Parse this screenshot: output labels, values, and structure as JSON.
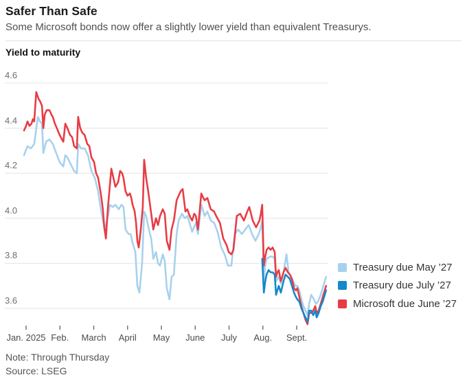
{
  "header": {
    "title": "Safer Than Safe",
    "subtitle": "Some Microsoft bonds now offer a slightly lower yield than equivalent Treasurys."
  },
  "chart_data": {
    "type": "line",
    "title": "Yield to maturity",
    "unit": "percent yield to maturity",
    "x_axis": {
      "tick_labels": [
        "Jan. 2025",
        "Feb.",
        "March",
        "April",
        "May",
        "June",
        "July",
        "Aug.",
        "Sept."
      ],
      "x_unit": "months since Jan 2025 tick (0 = Jan, 8 = Sept)"
    },
    "y_axis": {
      "ticks": [
        4.6,
        4.4,
        4.2,
        4.0,
        3.8,
        3.6
      ],
      "range": [
        3.5,
        4.65
      ]
    },
    "grid": "horizontal",
    "legend_position": "right",
    "series": [
      {
        "name": "Treasury due May ’27",
        "color": "#a7d1ee",
        "points": [
          [
            -0.06,
            4.28
          ],
          [
            0.04,
            4.32
          ],
          [
            0.14,
            4.31
          ],
          [
            0.24,
            4.33
          ],
          [
            0.35,
            4.45
          ],
          [
            0.41,
            4.43
          ],
          [
            0.47,
            4.42
          ],
          [
            0.51,
            4.29
          ],
          [
            0.59,
            4.34
          ],
          [
            0.69,
            4.35
          ],
          [
            0.79,
            4.33
          ],
          [
            0.89,
            4.29
          ],
          [
            0.99,
            4.25
          ],
          [
            1.1,
            4.23
          ],
          [
            1.16,
            4.28
          ],
          [
            1.22,
            4.27
          ],
          [
            1.32,
            4.24
          ],
          [
            1.42,
            4.21
          ],
          [
            1.5,
            4.2
          ],
          [
            1.54,
            4.33
          ],
          [
            1.62,
            4.31
          ],
          [
            1.73,
            4.31
          ],
          [
            1.83,
            4.28
          ],
          [
            1.93,
            4.21
          ],
          [
            2.03,
            4.18
          ],
          [
            2.13,
            4.12
          ],
          [
            2.21,
            4.04
          ],
          [
            2.27,
            3.99
          ],
          [
            2.33,
            3.95
          ],
          [
            2.42,
            4.01
          ],
          [
            2.48,
            4.06
          ],
          [
            2.56,
            4.05
          ],
          [
            2.64,
            4.06
          ],
          [
            2.74,
            4.04
          ],
          [
            2.82,
            4.06
          ],
          [
            2.88,
            4.05
          ],
          [
            2.94,
            3.95
          ],
          [
            3.03,
            3.93
          ],
          [
            3.09,
            3.93
          ],
          [
            3.15,
            3.89
          ],
          [
            3.23,
            3.85
          ],
          [
            3.29,
            3.7
          ],
          [
            3.35,
            3.67
          ],
          [
            3.43,
            3.8
          ],
          [
            3.49,
            4.03
          ],
          [
            3.55,
            4.01
          ],
          [
            3.63,
            3.95
          ],
          [
            3.7,
            3.91
          ],
          [
            3.76,
            3.82
          ],
          [
            3.84,
            3.85
          ],
          [
            3.9,
            3.8
          ],
          [
            3.96,
            3.79
          ],
          [
            4.04,
            3.84
          ],
          [
            4.1,
            3.81
          ],
          [
            4.16,
            3.69
          ],
          [
            4.24,
            3.64
          ],
          [
            4.3,
            3.74
          ],
          [
            4.37,
            3.75
          ],
          [
            4.45,
            3.93
          ],
          [
            4.51,
            3.99
          ],
          [
            4.61,
            4.02
          ],
          [
            4.69,
            4.0
          ],
          [
            4.77,
            4.01
          ],
          [
            4.85,
            3.97
          ],
          [
            4.91,
            3.94
          ],
          [
            5.02,
            3.98
          ],
          [
            5.08,
            3.93
          ],
          [
            5.18,
            4.06
          ],
          [
            5.28,
            4.01
          ],
          [
            5.36,
            4.03
          ],
          [
            5.46,
            3.99
          ],
          [
            5.56,
            3.98
          ],
          [
            5.66,
            3.94
          ],
          [
            5.77,
            3.87
          ],
          [
            5.87,
            3.84
          ],
          [
            5.97,
            3.79
          ],
          [
            6.07,
            3.79
          ],
          [
            6.17,
            3.93
          ],
          [
            6.27,
            3.95
          ],
          [
            6.38,
            3.93
          ],
          [
            6.48,
            3.95
          ],
          [
            6.58,
            3.97
          ],
          [
            6.68,
            3.93
          ],
          [
            6.78,
            3.9
          ],
          [
            6.88,
            3.93
          ],
          [
            6.94,
            3.96
          ],
          [
            6.98,
            3.99
          ],
          [
            7.03,
            3.73
          ],
          [
            7.07,
            3.79
          ],
          [
            7.11,
            3.82
          ],
          [
            7.21,
            3.83
          ],
          [
            7.29,
            3.83
          ],
          [
            7.35,
            3.82
          ],
          [
            7.39,
            3.72
          ],
          [
            7.47,
            3.74
          ],
          [
            7.53,
            3.71
          ],
          [
            7.61,
            3.76
          ],
          [
            7.7,
            3.84
          ],
          [
            7.76,
            3.76
          ],
          [
            7.84,
            3.74
          ],
          [
            7.9,
            3.72
          ],
          [
            7.96,
            3.7
          ],
          [
            8.02,
            3.7
          ],
          [
            8.08,
            3.68
          ],
          [
            8.14,
            3.64
          ],
          [
            8.2,
            3.61
          ],
          [
            8.26,
            3.59
          ],
          [
            8.32,
            3.57
          ],
          [
            8.37,
            3.62
          ],
          [
            8.43,
            3.66
          ],
          [
            8.51,
            3.64
          ],
          [
            8.57,
            3.62
          ],
          [
            8.63,
            3.63
          ],
          [
            8.71,
            3.66
          ],
          [
            8.77,
            3.69
          ],
          [
            8.81,
            3.71
          ],
          [
            8.87,
            3.74
          ]
        ]
      },
      {
        "name": "Treasury due July ’27",
        "color": "#1588c9",
        "points": [
          [
            6.98,
            3.82
          ],
          [
            7.03,
            3.67
          ],
          [
            7.07,
            3.72
          ],
          [
            7.11,
            3.75
          ],
          [
            7.17,
            3.77
          ],
          [
            7.23,
            3.76
          ],
          [
            7.29,
            3.76
          ],
          [
            7.35,
            3.75
          ],
          [
            7.39,
            3.66
          ],
          [
            7.43,
            3.68
          ],
          [
            7.47,
            3.7
          ],
          [
            7.53,
            3.67
          ],
          [
            7.61,
            3.72
          ],
          [
            7.67,
            3.75
          ],
          [
            7.74,
            3.74
          ],
          [
            7.8,
            3.73
          ],
          [
            7.86,
            3.7
          ],
          [
            7.92,
            3.67
          ],
          [
            7.98,
            3.65
          ],
          [
            8.02,
            3.64
          ],
          [
            8.08,
            3.63
          ],
          [
            8.14,
            3.6
          ],
          [
            8.2,
            3.58
          ],
          [
            8.26,
            3.56
          ],
          [
            8.32,
            3.54
          ],
          [
            8.37,
            3.59
          ],
          [
            8.43,
            3.59
          ],
          [
            8.49,
            3.57
          ],
          [
            8.55,
            3.59
          ],
          [
            8.59,
            3.56
          ],
          [
            8.65,
            3.58
          ],
          [
            8.71,
            3.61
          ],
          [
            8.77,
            3.63
          ],
          [
            8.81,
            3.65
          ],
          [
            8.87,
            3.68
          ]
        ]
      },
      {
        "name": "Microsoft due June ’27",
        "color": "#e83c44",
        "points": [
          [
            -0.06,
            4.39
          ],
          [
            0.0,
            4.41
          ],
          [
            0.04,
            4.43
          ],
          [
            0.1,
            4.41
          ],
          [
            0.16,
            4.42
          ],
          [
            0.2,
            4.44
          ],
          [
            0.24,
            4.43
          ],
          [
            0.3,
            4.56
          ],
          [
            0.37,
            4.53
          ],
          [
            0.41,
            4.52
          ],
          [
            0.47,
            4.5
          ],
          [
            0.51,
            4.4
          ],
          [
            0.55,
            4.46
          ],
          [
            0.61,
            4.48
          ],
          [
            0.69,
            4.48
          ],
          [
            0.75,
            4.46
          ],
          [
            0.79,
            4.45
          ],
          [
            0.85,
            4.42
          ],
          [
            0.91,
            4.4
          ],
          [
            0.99,
            4.37
          ],
          [
            1.06,
            4.35
          ],
          [
            1.1,
            4.34
          ],
          [
            1.16,
            4.42
          ],
          [
            1.22,
            4.4
          ],
          [
            1.3,
            4.37
          ],
          [
            1.36,
            4.36
          ],
          [
            1.42,
            4.32
          ],
          [
            1.5,
            4.31
          ],
          [
            1.54,
            4.45
          ],
          [
            1.6,
            4.4
          ],
          [
            1.66,
            4.38
          ],
          [
            1.73,
            4.37
          ],
          [
            1.81,
            4.33
          ],
          [
            1.87,
            4.32
          ],
          [
            1.93,
            4.27
          ],
          [
            2.01,
            4.25
          ],
          [
            2.07,
            4.2
          ],
          [
            2.13,
            4.18
          ],
          [
            2.21,
            4.11
          ],
          [
            2.27,
            4.04
          ],
          [
            2.31,
            3.96
          ],
          [
            2.36,
            3.91
          ],
          [
            2.42,
            4.05
          ],
          [
            2.48,
            4.15
          ],
          [
            2.52,
            4.22
          ],
          [
            2.58,
            4.18
          ],
          [
            2.64,
            4.14
          ],
          [
            2.72,
            4.16
          ],
          [
            2.78,
            4.21
          ],
          [
            2.84,
            4.2
          ],
          [
            2.88,
            4.18
          ],
          [
            2.94,
            4.12
          ],
          [
            3.0,
            4.1
          ],
          [
            3.07,
            4.11
          ],
          [
            3.11,
            4.09
          ],
          [
            3.15,
            4.06
          ],
          [
            3.21,
            4.03
          ],
          [
            3.25,
            3.98
          ],
          [
            3.29,
            3.9
          ],
          [
            3.33,
            3.87
          ],
          [
            3.39,
            3.95
          ],
          [
            3.45,
            4.05
          ],
          [
            3.49,
            4.26
          ],
          [
            3.55,
            4.18
          ],
          [
            3.61,
            4.12
          ],
          [
            3.7,
            4.02
          ],
          [
            3.76,
            3.95
          ],
          [
            3.84,
            4.0
          ],
          [
            3.9,
            3.97
          ],
          [
            3.96,
            4.01
          ],
          [
            4.04,
            4.04
          ],
          [
            4.1,
            4.02
          ],
          [
            4.16,
            3.9
          ],
          [
            4.24,
            3.86
          ],
          [
            4.3,
            3.95
          ],
          [
            4.37,
            3.99
          ],
          [
            4.45,
            4.08
          ],
          [
            4.51,
            4.1
          ],
          [
            4.57,
            4.12
          ],
          [
            4.63,
            4.13
          ],
          [
            4.71,
            4.03
          ],
          [
            4.77,
            4.04
          ],
          [
            4.81,
            4.02
          ],
          [
            4.87,
            4.0
          ],
          [
            4.91,
            3.99
          ],
          [
            4.97,
            4.02
          ],
          [
            5.02,
            4.01
          ],
          [
            5.08,
            3.95
          ],
          [
            5.18,
            4.11
          ],
          [
            5.24,
            4.09
          ],
          [
            5.28,
            4.08
          ],
          [
            5.36,
            4.09
          ],
          [
            5.42,
            4.06
          ],
          [
            5.46,
            4.04
          ],
          [
            5.56,
            4.03
          ],
          [
            5.62,
            4.01
          ],
          [
            5.73,
            3.98
          ],
          [
            5.83,
            3.91
          ],
          [
            5.93,
            3.88
          ],
          [
            5.99,
            3.85
          ],
          [
            6.07,
            3.84
          ],
          [
            6.13,
            3.86
          ],
          [
            6.23,
            4.01
          ],
          [
            6.33,
            4.02
          ],
          [
            6.44,
            3.99
          ],
          [
            6.54,
            4.03
          ],
          [
            6.6,
            4.05
          ],
          [
            6.7,
            3.99
          ],
          [
            6.8,
            3.96
          ],
          [
            6.9,
            3.99
          ],
          [
            6.94,
            4.02
          ],
          [
            6.98,
            4.06
          ],
          [
            7.03,
            3.79
          ],
          [
            7.07,
            3.83
          ],
          [
            7.11,
            3.86
          ],
          [
            7.17,
            3.87
          ],
          [
            7.23,
            3.86
          ],
          [
            7.29,
            3.87
          ],
          [
            7.35,
            3.85
          ],
          [
            7.39,
            3.74
          ],
          [
            7.43,
            3.76
          ],
          [
            7.47,
            3.77
          ],
          [
            7.53,
            3.72
          ],
          [
            7.61,
            3.76
          ],
          [
            7.67,
            3.78
          ],
          [
            7.74,
            3.76
          ],
          [
            7.8,
            3.75
          ],
          [
            7.86,
            3.73
          ],
          [
            7.92,
            3.69
          ],
          [
            7.98,
            3.68
          ],
          [
            8.02,
            3.69
          ],
          [
            8.08,
            3.65
          ],
          [
            8.14,
            3.61
          ],
          [
            8.2,
            3.58
          ],
          [
            8.26,
            3.55
          ],
          [
            8.32,
            3.53
          ],
          [
            8.37,
            3.58
          ],
          [
            8.43,
            3.58
          ],
          [
            8.49,
            3.59
          ],
          [
            8.55,
            3.61
          ],
          [
            8.59,
            3.58
          ],
          [
            8.65,
            3.59
          ],
          [
            8.71,
            3.62
          ],
          [
            8.77,
            3.65
          ],
          [
            8.81,
            3.67
          ],
          [
            8.87,
            3.7
          ]
        ]
      }
    ]
  },
  "footer": {
    "note": "Note: Through Thursday",
    "source": "Source: LSEG"
  }
}
